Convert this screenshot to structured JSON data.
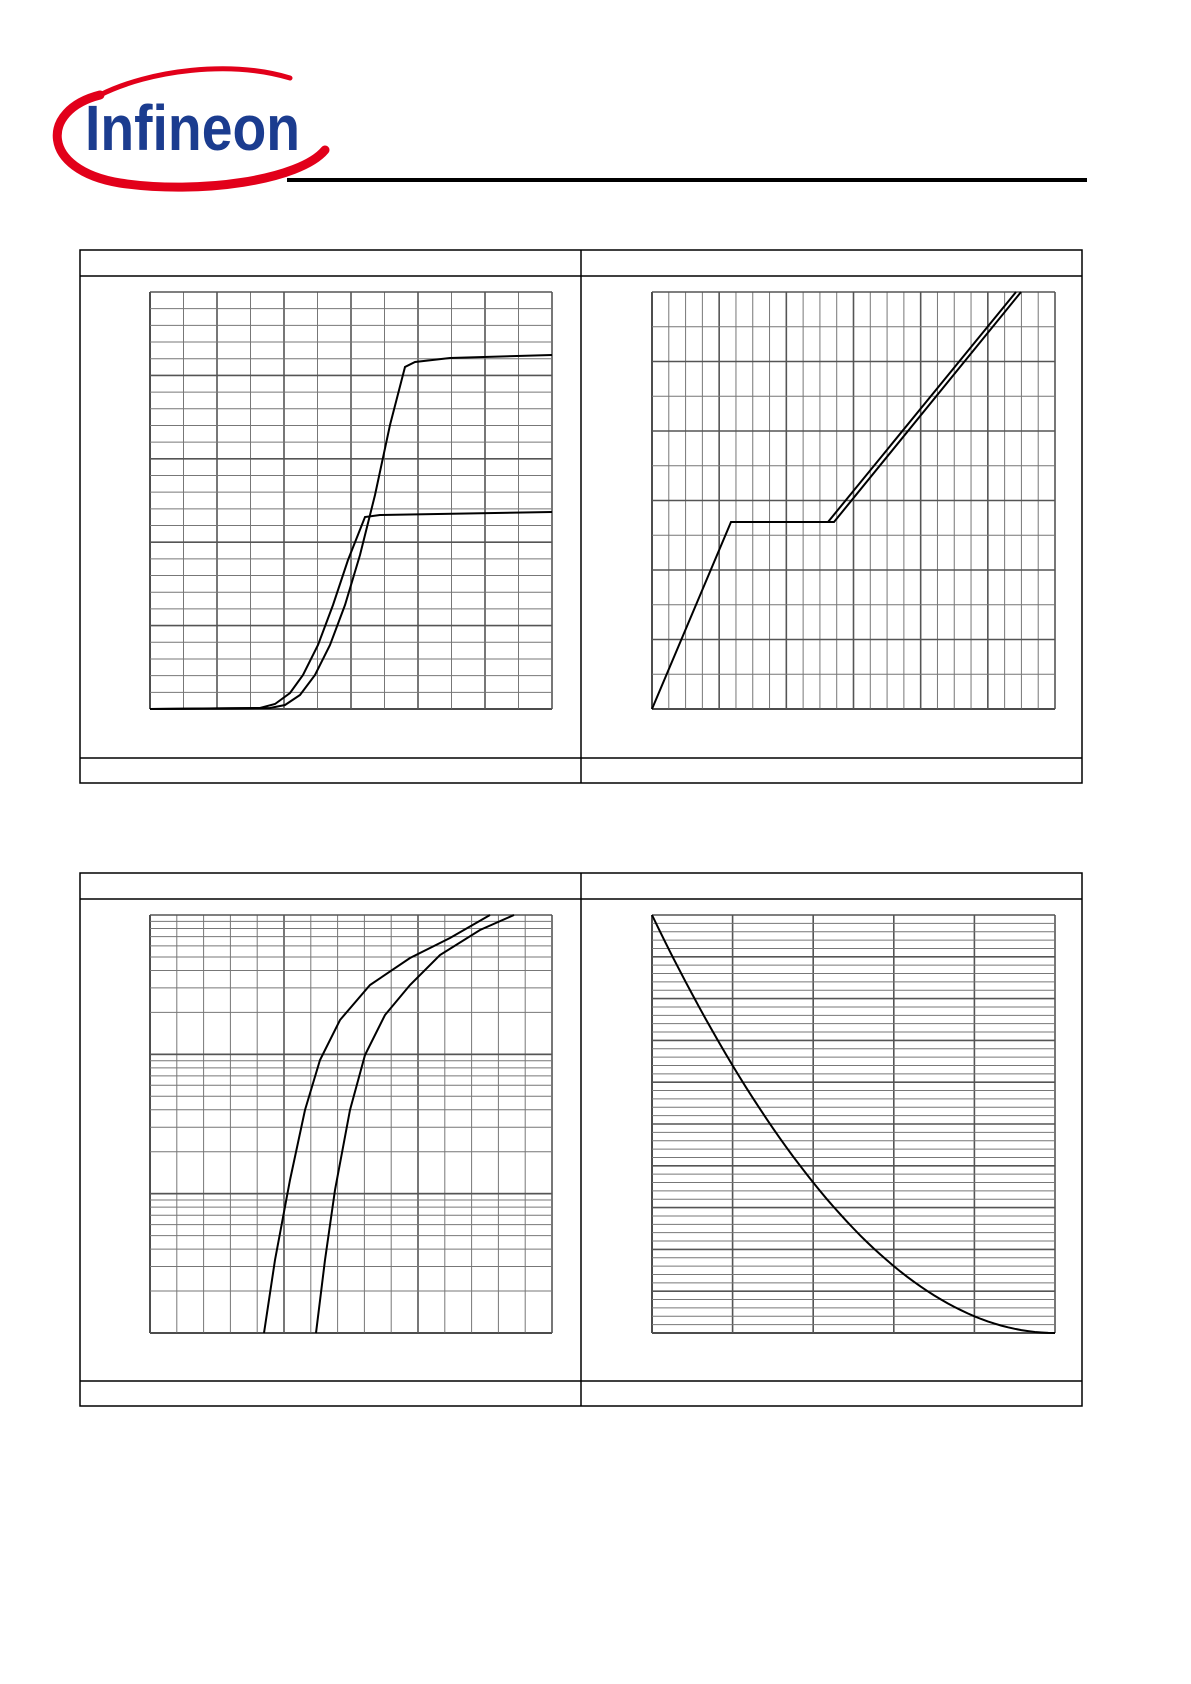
{
  "header": {
    "logo": "Infineon"
  }
}
